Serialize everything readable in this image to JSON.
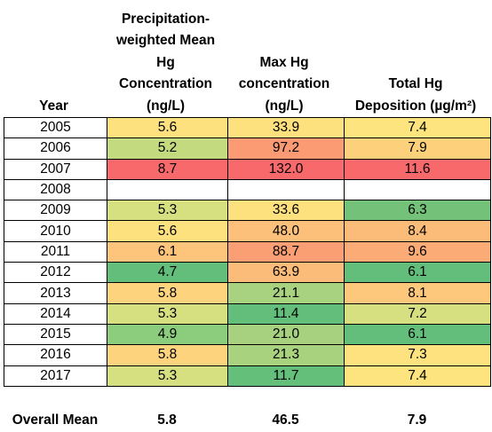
{
  "headers": {
    "year": "Year",
    "pw_mean": [
      "Precipitation-",
      "weighted Mean",
      "Hg",
      "Concentration",
      "(ng/L)"
    ],
    "max_hg": [
      "Max Hg",
      "concentration",
      "(ng/L)"
    ],
    "total_dep": [
      "Total Hg",
      "Deposition (µg/m²)"
    ]
  },
  "rows": [
    {
      "year": "2005",
      "pw": "5.6",
      "max": "33.9",
      "dep": "7.4",
      "pw_color": "#fde17f",
      "max_color": "#fde17f",
      "dep_color": "#fde47f"
    },
    {
      "year": "2006",
      "pw": "5.2",
      "max": "97.2",
      "dep": "7.9",
      "pw_color": "#c4da7e",
      "max_color": "#fa9b73",
      "dep_color": "#fdd17b"
    },
    {
      "year": "2007",
      "pw": "8.7",
      "max": "132.0",
      "dep": "11.6",
      "pw_color": "#f8696b",
      "max_color": "#f8696b",
      "dep_color": "#f8696b"
    },
    {
      "year": "2008",
      "pw": "",
      "max": "",
      "dep": "",
      "pw_color": "#ffffff",
      "max_color": "#ffffff",
      "dep_color": "#ffffff"
    },
    {
      "year": "2009",
      "pw": "5.3",
      "max": "33.6",
      "dep": "6.3",
      "pw_color": "#d6e080",
      "max_color": "#fde17f",
      "dep_color": "#74c27a"
    },
    {
      "year": "2010",
      "pw": "5.6",
      "max": "48.0",
      "dep": "8.4",
      "pw_color": "#fde17f",
      "max_color": "#fcc07a",
      "dep_color": "#fbbb79"
    },
    {
      "year": "2011",
      "pw": "6.1",
      "max": "88.7",
      "dep": "9.6",
      "pw_color": "#fcc57b",
      "max_color": "#fa9f74",
      "dep_color": "#fbab76"
    },
    {
      "year": "2012",
      "pw": "4.7",
      "max": "63.9",
      "dep": "6.1",
      "pw_color": "#63be7b",
      "max_color": "#fbbc79",
      "dep_color": "#63be7b"
    },
    {
      "year": "2013",
      "pw": "5.8",
      "max": "21.1",
      "dep": "8.1",
      "pw_color": "#fdd47d",
      "max_color": "#a8d27f",
      "dep_color": "#fdc77c"
    },
    {
      "year": "2014",
      "pw": "5.3",
      "max": "11.4",
      "dep": "7.2",
      "pw_color": "#d6e080",
      "max_color": "#63be7b",
      "dep_color": "#d7e081"
    },
    {
      "year": "2015",
      "pw": "4.9",
      "max": "21.0",
      "dep": "6.1",
      "pw_color": "#8ccc7d",
      "max_color": "#a7d17f",
      "dep_color": "#63be7b"
    },
    {
      "year": "2016",
      "pw": "5.8",
      "max": "21.3",
      "dep": "7.3",
      "pw_color": "#fdd47d",
      "max_color": "#a9d27f",
      "dep_color": "#fde27f"
    },
    {
      "year": "2017",
      "pw": "5.3",
      "max": "11.7",
      "dep": "7.4",
      "pw_color": "#d6e080",
      "max_color": "#64bf7b",
      "dep_color": "#fde47f"
    }
  ],
  "overall": {
    "label": "Overall Mean",
    "pw": "5.8",
    "max": "46.5",
    "dep": "7.9"
  }
}
